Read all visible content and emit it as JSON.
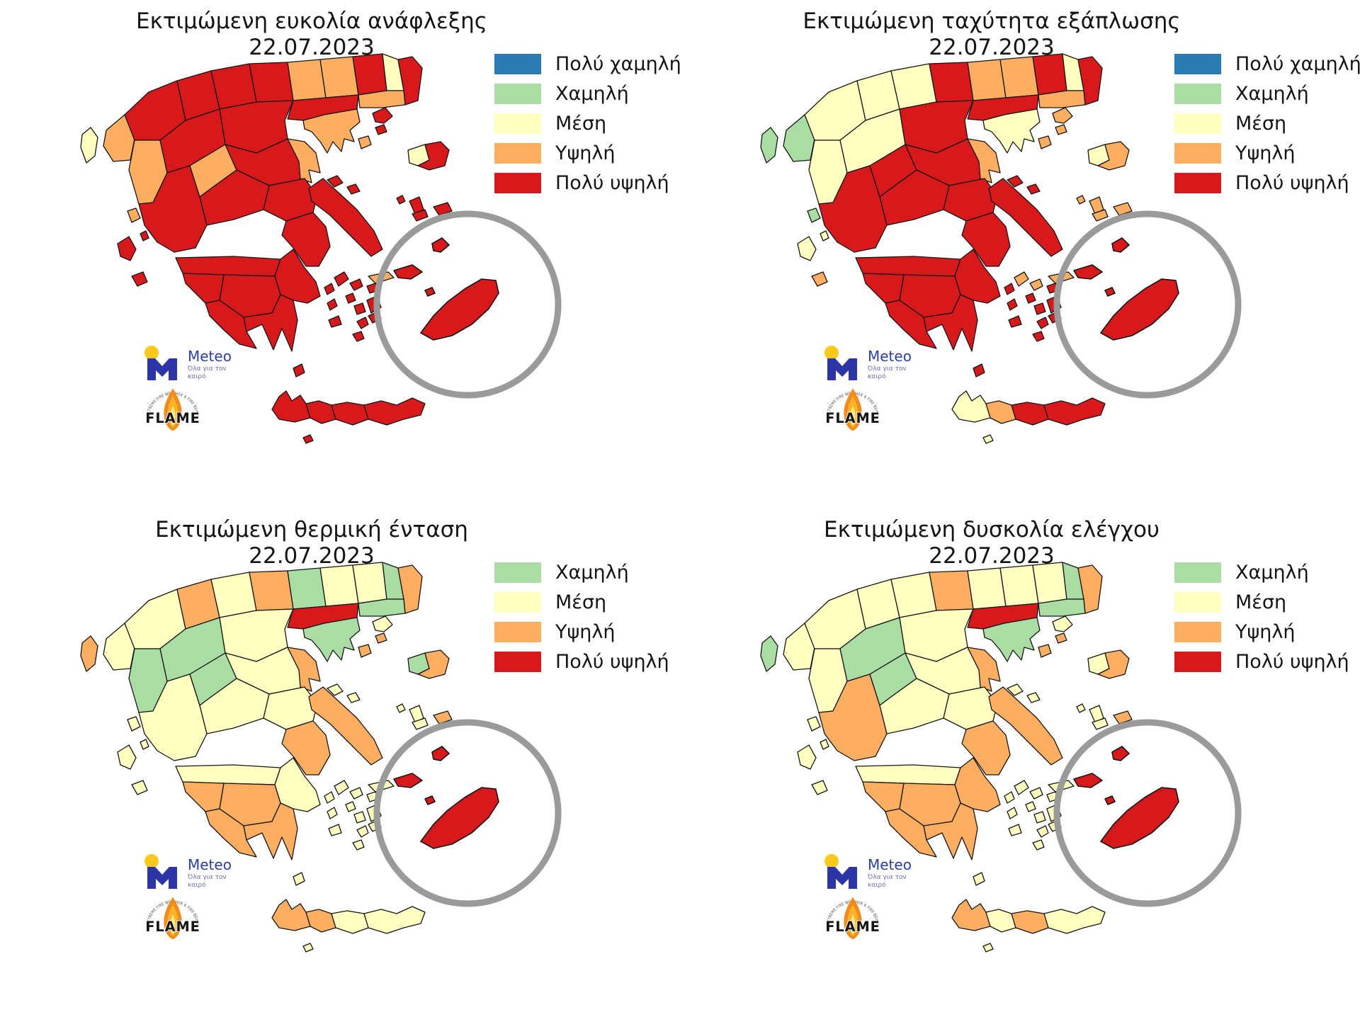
{
  "page": {
    "background": "#ffffff"
  },
  "level_colors": {
    "very_low": "#2b7cb5",
    "low": "#aadda4",
    "medium": "#ffffbf",
    "high": "#fdae61",
    "very_high": "#d7191c"
  },
  "map_style": {
    "region_border": "#151515",
    "inset_ring": "#9a9a9a",
    "sea": "#ffffff"
  },
  "logos": {
    "meteo": {
      "name": "Meteo",
      "tagline": "Όλα για τον καιρό",
      "name_color": "#2b3f9e",
      "icon_blue": "#2b35a8",
      "icon_yellow": "#f8c81c"
    },
    "flame": {
      "name": "FLAME",
      "ring_text": "EXTREME FIRE WEATHER & FIRE BEHAVIOUR",
      "flame_outer": "#f08c1d",
      "flame_mid": "#fbb32a",
      "flame_core": "#fde87a"
    }
  },
  "panels": [
    {
      "id": "ignition",
      "title": "Εκτιμώμενη ευκολία ανάφλεξης",
      "date": "22.07.2023",
      "legend": [
        {
          "label": "Πολύ χαμηλή",
          "level": "very_low"
        },
        {
          "label": "Χαμηλή",
          "level": "low"
        },
        {
          "label": "Μέση",
          "level": "medium"
        },
        {
          "label": "Υψηλή",
          "level": "high"
        },
        {
          "label": "Πολύ υψηλή",
          "level": "very_high"
        }
      ],
      "regions": {
        "corfu": "medium",
        "thesprotia": "high",
        "ioannina": "very_high",
        "wmac": "very_high",
        "kozani": "very_high",
        "pella": "very_high",
        "kilkis": "high",
        "serres": "high",
        "drama": "very_high",
        "xanthi": "medium",
        "evros": "very_high",
        "arta": "high",
        "trikala": "very_high",
        "larissa": "very_high",
        "thessaloniki": "very_high",
        "kavala": "high",
        "chalkidiki": "high",
        "aetolia": "very_high",
        "evrytania": "high",
        "fthiotida": "very_high",
        "magnesia": "high",
        "fokida": "very_high",
        "boeotia": "very_high",
        "attica": "very_high",
        "euboea": "very_high",
        "achaia": "very_high",
        "corinthia": "very_high",
        "elis": "very_high",
        "arcadia": "very_high",
        "messenia": "very_high",
        "laconia": "very_high",
        "lefkada": "high",
        "ithaki": "very_high",
        "kefalonia": "very_high",
        "zakynthos": "very_high",
        "chania": "very_high",
        "rethymno": "very_high",
        "heraklion": "very_high",
        "lasithi": "very_high",
        "gavdos": "very_high",
        "lemnos": "very_high",
        "samothrace": "very_high",
        "thasos": "high",
        "lesbos_w": "medium",
        "lesbos_e": "very_high",
        "psara": "very_high",
        "chios": "very_high",
        "samos": "very_high",
        "ikaria": "very_high",
        "sporades_a": "very_high",
        "sporades_b": "very_high",
        "kea": "very_high",
        "kythnos": "very_high",
        "andros": "very_high",
        "tinos": "very_high",
        "mykonos": "very_high",
        "syros": "very_high",
        "paros": "very_high",
        "naxos": "very_high",
        "milos": "very_high",
        "ios": "very_high",
        "santorini": "very_high",
        "amorgos": "very_high",
        "kythira": "very_high",
        "kos": "high"
      },
      "inset_regions": {
        "rhodes": "very_high",
        "symi": "very_high",
        "halki": "very_high",
        "tilos": "very_high"
      }
    },
    {
      "id": "spread",
      "title": "Εκτιμώμενη ταχύτητα εξάπλωσης",
      "date": "22.07.2023",
      "legend": [
        {
          "label": "Πολύ χαμηλή",
          "level": "very_low"
        },
        {
          "label": "Χαμηλή",
          "level": "low"
        },
        {
          "label": "Μέση",
          "level": "medium"
        },
        {
          "label": "Υψηλή",
          "level": "high"
        },
        {
          "label": "Πολύ υψηλή",
          "level": "very_high"
        }
      ],
      "regions": {
        "corfu": "low",
        "thesprotia": "low",
        "ioannina": "medium",
        "wmac": "medium",
        "kozani": "medium",
        "pella": "very_high",
        "kilkis": "high",
        "serres": "high",
        "drama": "very_high",
        "xanthi": "medium",
        "evros": "very_high",
        "arta": "medium",
        "trikala": "medium",
        "larissa": "very_high",
        "thessaloniki": "very_high",
        "kavala": "high",
        "chalkidiki": "medium",
        "aetolia": "very_high",
        "evrytania": "very_high",
        "fthiotida": "very_high",
        "magnesia": "high",
        "fokida": "very_high",
        "boeotia": "very_high",
        "attica": "very_high",
        "euboea": "very_high",
        "achaia": "very_high",
        "corinthia": "very_high",
        "elis": "very_high",
        "arcadia": "very_high",
        "messenia": "very_high",
        "laconia": "very_high",
        "lefkada": "low",
        "ithaki": "medium",
        "kefalonia": "medium",
        "zakynthos": "high",
        "chania": "medium",
        "rethymno": "high",
        "heraklion": "very_high",
        "lasithi": "very_high",
        "gavdos": "medium",
        "lemnos": "high",
        "samothrace": "high",
        "thasos": "high",
        "lesbos_w": "medium",
        "lesbos_e": "high",
        "psara": "high",
        "chios": "high",
        "samos": "high",
        "ikaria": "high",
        "sporades_a": "very_high",
        "sporades_b": "very_high",
        "kea": "very_high",
        "kythnos": "very_high",
        "andros": "high",
        "tinos": "high",
        "mykonos": "very_high",
        "syros": "very_high",
        "paros": "very_high",
        "naxos": "very_high",
        "milos": "very_high",
        "ios": "very_high",
        "santorini": "very_high",
        "amorgos": "very_high",
        "kythira": "very_high",
        "kos": "high"
      },
      "inset_regions": {
        "rhodes": "very_high",
        "symi": "very_high",
        "halki": "very_high",
        "tilos": "very_high"
      }
    },
    {
      "id": "intensity",
      "title": "Εκτιμώμενη θερμική ένταση",
      "date": "22.07.2023",
      "legend": [
        {
          "label": "Χαμηλή",
          "level": "low"
        },
        {
          "label": "Μέση",
          "level": "medium"
        },
        {
          "label": "Υψηλή",
          "level": "high"
        },
        {
          "label": "Πολύ υψηλή",
          "level": "very_high"
        }
      ],
      "regions": {
        "corfu": "high",
        "thesprotia": "medium",
        "ioannina": "medium",
        "wmac": "high",
        "kozani": "medium",
        "pella": "high",
        "kilkis": "low",
        "serres": "medium",
        "drama": "medium",
        "xanthi": "low",
        "evros": "high",
        "arta": "low",
        "trikala": "low",
        "larissa": "medium",
        "thessaloniki": "very_high",
        "kavala": "low",
        "chalkidiki": "low",
        "aetolia": "medium",
        "evrytania": "low",
        "fthiotida": "medium",
        "magnesia": "high",
        "fokida": "medium",
        "boeotia": "medium",
        "attica": "high",
        "euboea": "high",
        "achaia": "medium",
        "corinthia": "medium",
        "elis": "high",
        "arcadia": "high",
        "messenia": "high",
        "laconia": "high",
        "lefkada": "medium",
        "ithaki": "medium",
        "kefalonia": "medium",
        "zakynthos": "medium",
        "chania": "high",
        "rethymno": "high",
        "heraklion": "medium",
        "lasithi": "medium",
        "gavdos": "medium",
        "lemnos": "medium",
        "samothrace": "high",
        "thasos": "high",
        "lesbos_w": "low",
        "lesbos_e": "high",
        "psara": "medium",
        "chios": "medium",
        "samos": "high",
        "ikaria": "medium",
        "sporades_a": "medium",
        "sporades_b": "medium",
        "kea": "medium",
        "kythnos": "medium",
        "andros": "medium",
        "tinos": "medium",
        "mykonos": "medium",
        "syros": "medium",
        "paros": "medium",
        "naxos": "medium",
        "milos": "medium",
        "ios": "medium",
        "santorini": "medium",
        "amorgos": "medium",
        "kythira": "medium",
        "kos": "medium"
      },
      "inset_regions": {
        "rhodes": "very_high",
        "symi": "very_high",
        "halki": "very_high",
        "tilos": "very_high"
      }
    },
    {
      "id": "control",
      "title": "Εκτιμώμενη δυσκολία ελέγχου",
      "date": "22.07.2023",
      "legend": [
        {
          "label": "Χαμηλή",
          "level": "low"
        },
        {
          "label": "Μέση",
          "level": "medium"
        },
        {
          "label": "Υψηλή",
          "level": "high"
        },
        {
          "label": "Πολύ υψηλή",
          "level": "very_high"
        }
      ],
      "regions": {
        "corfu": "low",
        "thesprotia": "medium",
        "ioannina": "medium",
        "wmac": "medium",
        "kozani": "medium",
        "pella": "high",
        "kilkis": "medium",
        "serres": "medium",
        "drama": "medium",
        "xanthi": "low",
        "evros": "high",
        "arta": "medium",
        "trikala": "low",
        "larissa": "medium",
        "thessaloniki": "very_high",
        "kavala": "low",
        "chalkidiki": "low",
        "aetolia": "high",
        "evrytania": "low",
        "fthiotida": "medium",
        "magnesia": "high",
        "fokida": "medium",
        "boeotia": "medium",
        "attica": "high",
        "euboea": "high",
        "achaia": "medium",
        "corinthia": "high",
        "elis": "high",
        "arcadia": "high",
        "messenia": "high",
        "laconia": "high",
        "lefkada": "medium",
        "ithaki": "medium",
        "kefalonia": "medium",
        "zakynthos": "medium",
        "chania": "high",
        "rethymno": "medium",
        "heraklion": "high",
        "lasithi": "medium",
        "gavdos": "medium",
        "lemnos": "medium",
        "samothrace": "high",
        "thasos": "high",
        "lesbos_w": "medium",
        "lesbos_e": "high",
        "psara": "medium",
        "chios": "medium",
        "samos": "high",
        "ikaria": "medium",
        "sporades_a": "medium",
        "sporades_b": "medium",
        "kea": "medium",
        "kythnos": "medium",
        "andros": "medium",
        "tinos": "medium",
        "mykonos": "medium",
        "syros": "medium",
        "paros": "medium",
        "naxos": "medium",
        "milos": "medium",
        "ios": "medium",
        "santorini": "medium",
        "amorgos": "medium",
        "kythira": "medium",
        "kos": "medium"
      },
      "inset_regions": {
        "rhodes": "very_high",
        "symi": "very_high",
        "halki": "very_high",
        "tilos": "very_high"
      }
    }
  ]
}
